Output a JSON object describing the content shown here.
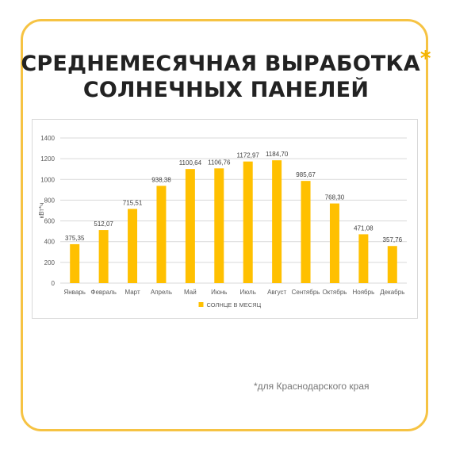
{
  "title": {
    "line1": "СРЕДНЕМЕСЯЧНАЯ ВЫРАБОТКА",
    "asterisk": "*",
    "line2": "СОЛНЕЧНЫХ ПАНЕЛЕЙ"
  },
  "footnote": "*для Краснодарского края",
  "colors": {
    "accent": "#f6c343",
    "bar": "#ffc000",
    "asterisk": "#f4b400"
  },
  "chart_data": {
    "type": "bar",
    "categories": [
      "Январь",
      "Февраль",
      "Март",
      "Апрель",
      "Май",
      "Июнь",
      "Июль",
      "Август",
      "Сентябрь",
      "Октябрь",
      "Ноябрь",
      "Декабрь"
    ],
    "series": [
      {
        "name": "СОЛНЦЕ В МЕСЯЦ",
        "values": [
          375.35,
          512.07,
          715.51,
          938.38,
          1100.64,
          1106.76,
          1172.97,
          1184.7,
          985.67,
          768.3,
          471.08,
          357.76
        ],
        "labels": [
          "375,35",
          "512,07",
          "715,51",
          "938,38",
          "1100,64",
          "1106,76",
          "1172,97",
          "1184,70",
          "985,67",
          "768,30",
          "471,08",
          "357,76"
        ]
      }
    ],
    "ylabel": "кВт*ч",
    "ylim": [
      0,
      1400
    ],
    "yticks": [
      "0",
      "200",
      "400",
      "600",
      "800",
      "1000",
      "1200",
      "1400"
    ],
    "grid": true,
    "legend": "bottom"
  }
}
